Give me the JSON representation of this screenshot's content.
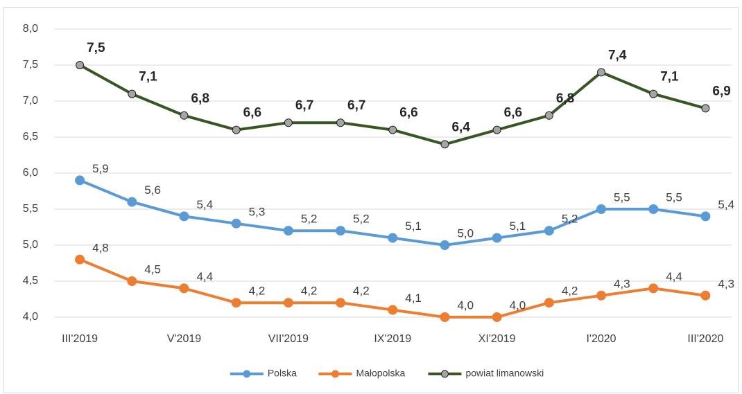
{
  "chart_data": {
    "type": "line",
    "categories": [
      "III'2019",
      null,
      "V'2019",
      null,
      "VII'2019",
      null,
      "IX'2019",
      null,
      "XI'2019",
      null,
      "I'2020",
      null,
      "III'2020"
    ],
    "series": [
      {
        "name": "Polska",
        "color": "#5b9bd5",
        "values": [
          5.9,
          5.6,
          5.4,
          5.3,
          5.2,
          5.2,
          5.1,
          5.0,
          5.1,
          5.2,
          5.5,
          5.5,
          5.4
        ],
        "value_labels": [
          "5,9",
          "5,6",
          "5,4",
          "5,3",
          "5,2",
          "5,2",
          "5,1",
          "5,0",
          "5,1",
          "5,2",
          "5,5",
          "5,5",
          "5,4"
        ]
      },
      {
        "name": "Małopolska",
        "color": "#ed7d31",
        "values": [
          4.8,
          4.5,
          4.4,
          4.2,
          4.2,
          4.2,
          4.1,
          4.0,
          4.0,
          4.2,
          4.3,
          4.4,
          4.3
        ],
        "value_labels": [
          "4,8",
          "4,5",
          "4,4",
          "4,2",
          "4,2",
          "4,2",
          "4,1",
          "4,0",
          "4,0",
          "4,2",
          "4,3",
          "4,4",
          "4,3"
        ]
      },
      {
        "name": "powiat limanowski",
        "color": "#375623",
        "marker_color": "#a5a5a5",
        "values": [
          7.5,
          7.1,
          6.8,
          6.6,
          6.7,
          6.7,
          6.6,
          6.4,
          6.6,
          6.8,
          7.4,
          7.1,
          6.9
        ],
        "value_labels": [
          "7,5",
          "7,1",
          "6,8",
          "6,6",
          "6,7",
          "6,7",
          "6,6",
          "6,4",
          "6,6",
          "6,8",
          "7,4",
          "7,1",
          "6,9"
        ]
      }
    ],
    "ylim": [
      4.0,
      8.0
    ],
    "yticks": [
      {
        "value": 4.0,
        "label": "4,0"
      },
      {
        "value": 4.5,
        "label": "4,5"
      },
      {
        "value": 5.0,
        "label": "5,0"
      },
      {
        "value": 5.5,
        "label": "5,5"
      },
      {
        "value": 6.0,
        "label": "6,0"
      },
      {
        "value": 6.5,
        "label": "6,5"
      },
      {
        "value": 7.0,
        "label": "7,0"
      },
      {
        "value": 7.5,
        "label": "7,5"
      },
      {
        "value": 8.0,
        "label": "8,0"
      }
    ],
    "grid": true,
    "legend": "bottom"
  }
}
